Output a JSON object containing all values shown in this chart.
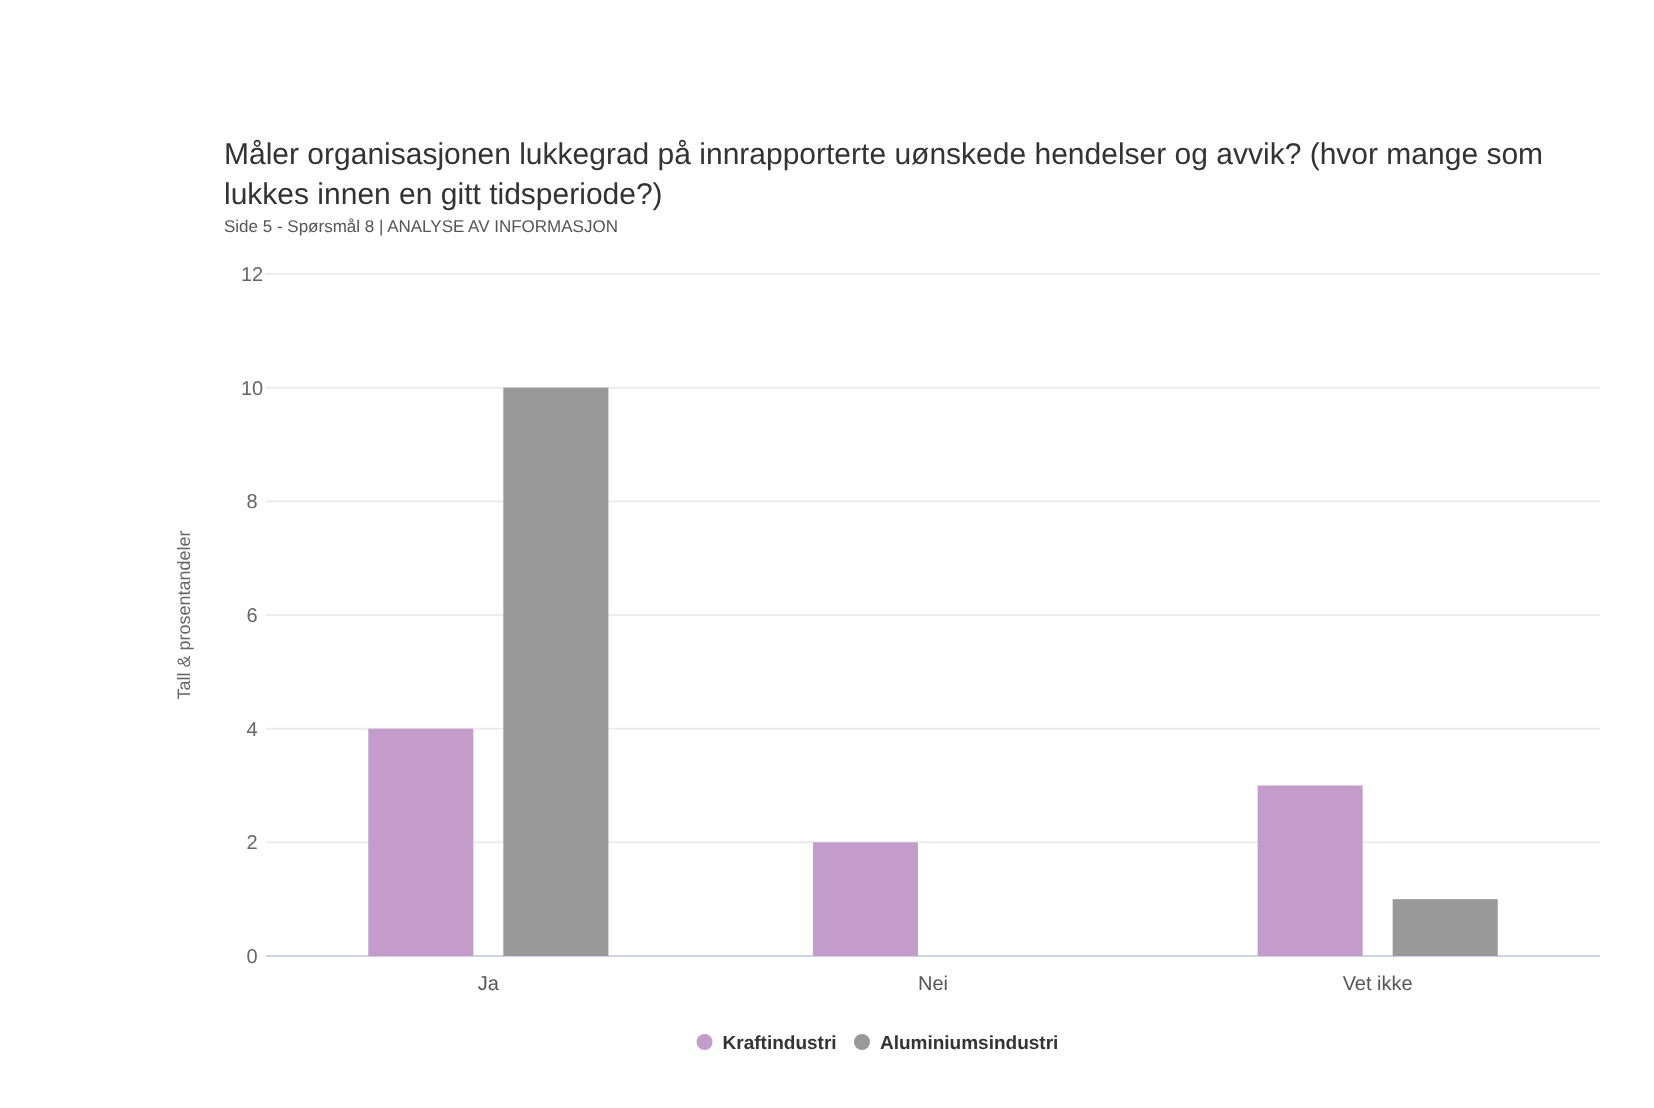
{
  "chart_data": {
    "type": "bar",
    "title": "Måler organisasjonen lukkegrad på innrapporterte uønskede hendelser og avvik? (hvor mange som lukkes innen en gitt tidsperiode?)",
    "subtitle": "Side 5 - Spørsmål 8 | ANALYSE AV INFORMASJON",
    "ylabel": "Tall & prosentandeler",
    "categories": [
      "Ja",
      "Nei",
      "Vet ikke"
    ],
    "series": [
      {
        "name": "Kraftindustri",
        "color": "#c39ccb",
        "values": [
          4,
          2,
          3
        ]
      },
      {
        "name": "Aluminiumsindustri",
        "color": "#999999",
        "values": [
          10,
          0,
          1
        ]
      }
    ],
    "ylim": [
      0,
      12
    ],
    "yticks": [
      0,
      2,
      4,
      6,
      8,
      10,
      12
    ],
    "grid": "y",
    "legend": "bottom"
  }
}
